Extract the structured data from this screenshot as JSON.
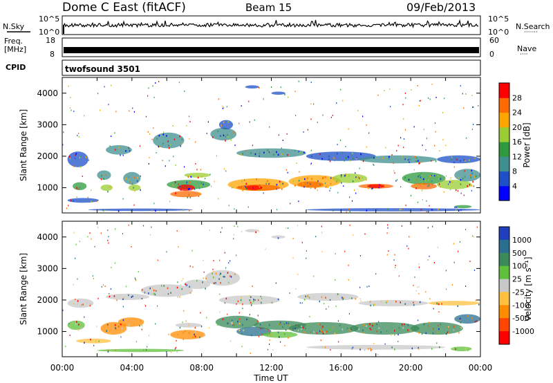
{
  "header": {
    "title": "Dome C East (fitACF)",
    "beam": "Beam 15",
    "date": "09/Feb/2013"
  },
  "nsky_panel": {
    "left_label": "N.Sky",
    "right_label": "N.Search",
    "right_marker": "·······",
    "tick_top": "10^5",
    "tick_bottom": "10^0"
  },
  "freq_panel": {
    "left_label_line1": "Freq.",
    "left_label_line2": "[MHz]",
    "left_tick_top": "18",
    "left_tick_bottom": "8",
    "right_label": "Nave",
    "right_marker": "····",
    "right_tick_top": "60",
    "right_tick_bottom": "0"
  },
  "cpid_panel": {
    "label": "CPID",
    "text": "twofsound 3501"
  },
  "chart_data": [
    {
      "type": "heatmap",
      "name": "power",
      "ylabel": "Slant Range [km]",
      "ylim": [
        200,
        4500
      ],
      "yticks": [
        "1000",
        "2000",
        "3000",
        "4000"
      ],
      "xlim": [
        0,
        24
      ],
      "colorbar": {
        "label": "Power [dB]",
        "ticks": [
          "4",
          "8",
          "12",
          "16",
          "20",
          "24",
          "28"
        ],
        "colors": [
          "#0000ff",
          "#1e4fc8",
          "#3f8f8f",
          "#2e9a3e",
          "#9acd32",
          "#ffa500",
          "#ff6a00",
          "#ff0000"
        ]
      }
    },
    {
      "type": "heatmap",
      "name": "velocity",
      "ylabel": "Slant Range [km]",
      "ylim": [
        200,
        4500
      ],
      "yticks": [
        "1000",
        "2000",
        "3000",
        "4000"
      ],
      "xlim": [
        0,
        24
      ],
      "xticks": [
        "00:00",
        "04:00",
        "08:00",
        "12:00",
        "16:00",
        "20:00",
        "00:00"
      ],
      "xlabel": "Time UT",
      "colorbar": {
        "label": "Velocity [m s⁻¹]",
        "ticks": [
          "1000",
          "500",
          "100",
          "25",
          "-25",
          "-100",
          "-500",
          "-1000"
        ],
        "colors": [
          "#1f3fbf",
          "#2a6f8f",
          "#3a8a5a",
          "#5fc03a",
          "#c8c8c8",
          "#ffc040",
          "#ff8c00",
          "#ff4500",
          "#ff0000"
        ]
      }
    }
  ],
  "power_blobs": [
    {
      "t": 0.3,
      "r": 1900,
      "dt": 1.2,
      "dr": 500,
      "c": "#1e4fc8"
    },
    {
      "t": 0.6,
      "r": 1050,
      "dt": 0.8,
      "dr": 250,
      "c": "#2e9a3e"
    },
    {
      "t": 0.3,
      "r": 600,
      "dt": 1.8,
      "dr": 150,
      "c": "#1e4fc8"
    },
    {
      "t": 2.0,
      "r": 1400,
      "dt": 0.8,
      "dr": 300,
      "c": "#3f8f8f"
    },
    {
      "t": 2.2,
      "r": 1000,
      "dt": 0.7,
      "dr": 200,
      "c": "#9acd32"
    },
    {
      "t": 3.5,
      "r": 1300,
      "dt": 1.0,
      "dr": 400,
      "c": "#3f8f8f"
    },
    {
      "t": 3.8,
      "r": 1000,
      "dt": 0.7,
      "dr": 200,
      "c": "#9acd32"
    },
    {
      "t": 2.5,
      "r": 2200,
      "dt": 1.5,
      "dr": 300,
      "c": "#3f8f8f"
    },
    {
      "t": 5.2,
      "r": 2500,
      "dt": 1.8,
      "dr": 500,
      "c": "#3f8f8f"
    },
    {
      "t": 6.0,
      "r": 1100,
      "dt": 2.5,
      "dr": 300,
      "c": "#2e9a3e"
    },
    {
      "t": 6.2,
      "r": 800,
      "dt": 1.8,
      "dr": 200,
      "c": "#ff6a00"
    },
    {
      "t": 6.6,
      "r": 1000,
      "dt": 1.0,
      "dr": 200,
      "c": "#ff0000"
    },
    {
      "t": 7.0,
      "r": 1400,
      "dt": 1.5,
      "dr": 150,
      "c": "#9acd32"
    },
    {
      "t": 8.5,
      "r": 2700,
      "dt": 1.5,
      "dr": 400,
      "c": "#3f8f8f"
    },
    {
      "t": 9.0,
      "r": 3000,
      "dt": 0.8,
      "dr": 300,
      "c": "#1e4fc8"
    },
    {
      "t": 9.5,
      "r": 1100,
      "dt": 3.5,
      "dr": 400,
      "c": "#ffa500"
    },
    {
      "t": 10.0,
      "r": 1000,
      "dt": 2.5,
      "dr": 200,
      "c": "#ff6a00"
    },
    {
      "t": 10.5,
      "r": 1000,
      "dt": 1.0,
      "dr": 150,
      "c": "#ff0000"
    },
    {
      "t": 10.0,
      "r": 2100,
      "dt": 4.0,
      "dr": 300,
      "c": "#3f8f8f"
    },
    {
      "t": 10.5,
      "r": 4200,
      "dt": 0.8,
      "dr": 100,
      "c": "#1e4fc8"
    },
    {
      "t": 12.0,
      "r": 4000,
      "dt": 0.8,
      "dr": 100,
      "c": "#1e4fc8"
    },
    {
      "t": 13.0,
      "r": 1200,
      "dt": 3.0,
      "dr": 400,
      "c": "#ffa500"
    },
    {
      "t": 13.5,
      "r": 1100,
      "dt": 1.5,
      "dr": 200,
      "c": "#ff6a00"
    },
    {
      "t": 14.0,
      "r": 2000,
      "dt": 4.0,
      "dr": 300,
      "c": "#1e4fc8"
    },
    {
      "t": 15.5,
      "r": 1300,
      "dt": 2.0,
      "dr": 300,
      "c": "#9acd32"
    },
    {
      "t": 17.0,
      "r": 1050,
      "dt": 2.0,
      "dr": 150,
      "c": "#ff6a00"
    },
    {
      "t": 17.5,
      "r": 1050,
      "dt": 1.0,
      "dr": 120,
      "c": "#ff0000"
    },
    {
      "t": 17.0,
      "r": 1900,
      "dt": 4.5,
      "dr": 250,
      "c": "#3f8f8f"
    },
    {
      "t": 19.5,
      "r": 1300,
      "dt": 2.5,
      "dr": 400,
      "c": "#2e9a3e"
    },
    {
      "t": 20.0,
      "r": 1050,
      "dt": 1.5,
      "dr": 200,
      "c": "#ff6a00"
    },
    {
      "t": 21.5,
      "r": 1100,
      "dt": 2.0,
      "dr": 300,
      "c": "#9acd32"
    },
    {
      "t": 22.5,
      "r": 1400,
      "dt": 1.5,
      "dr": 400,
      "c": "#3f8f8f"
    },
    {
      "t": 21.5,
      "r": 1900,
      "dt": 2.5,
      "dr": 250,
      "c": "#1e4fc8"
    },
    {
      "t": 22.5,
      "r": 400,
      "dt": 1.0,
      "dr": 100,
      "c": "#2e9a3e"
    },
    {
      "t": 14.0,
      "r": 300,
      "dt": 10.0,
      "dr": 100,
      "c": "#1e4fc8"
    },
    {
      "t": 1.5,
      "r": 300,
      "dt": 6.0,
      "dr": 80,
      "c": "#1e4fc8"
    }
  ],
  "velocity_blobs": [
    {
      "t": 0.3,
      "r": 1900,
      "dt": 1.5,
      "dr": 300,
      "c": "#c8c8c8"
    },
    {
      "t": 0.3,
      "r": 1200,
      "dt": 1.0,
      "dr": 300,
      "c": "#5fc03a"
    },
    {
      "t": 0.8,
      "r": 700,
      "dt": 2.0,
      "dr": 150,
      "c": "#ffc040"
    },
    {
      "t": 2.2,
      "r": 1100,
      "dt": 1.5,
      "dr": 400,
      "c": "#ff8c00"
    },
    {
      "t": 3.2,
      "r": 1300,
      "dt": 1.5,
      "dr": 300,
      "c": "#ff8c00"
    },
    {
      "t": 2.5,
      "r": 2100,
      "dt": 2.5,
      "dr": 200,
      "c": "#c8c8c8"
    },
    {
      "t": 4.5,
      "r": 2300,
      "dt": 3.0,
      "dr": 400,
      "c": "#c8c8c8"
    },
    {
      "t": 6.2,
      "r": 900,
      "dt": 2.0,
      "dr": 300,
      "c": "#ff8c00"
    },
    {
      "t": 6.5,
      "r": 1200,
      "dt": 1.5,
      "dr": 150,
      "c": "#c8c8c8"
    },
    {
      "t": 7.0,
      "r": 2500,
      "dt": 1.5,
      "dr": 300,
      "c": "#c8c8c8"
    },
    {
      "t": 8.2,
      "r": 2700,
      "dt": 2.0,
      "dr": 500,
      "c": "#c8c8c8"
    },
    {
      "t": 8.8,
      "r": 1300,
      "dt": 2.5,
      "dr": 400,
      "c": "#3a8a5a"
    },
    {
      "t": 9.0,
      "r": 2000,
      "dt": 3.5,
      "dr": 300,
      "c": "#c8c8c8"
    },
    {
      "t": 10.0,
      "r": 1000,
      "dt": 2.0,
      "dr": 300,
      "c": "#2a6f8f"
    },
    {
      "t": 11.0,
      "r": 1200,
      "dt": 3.0,
      "dr": 300,
      "c": "#3a8a5a"
    },
    {
      "t": 11.5,
      "r": 900,
      "dt": 2.0,
      "dr": 200,
      "c": "#5fc03a"
    },
    {
      "t": 13.0,
      "r": 1100,
      "dt": 4.0,
      "dr": 400,
      "c": "#3a8a5a"
    },
    {
      "t": 13.5,
      "r": 2100,
      "dt": 3.5,
      "dr": 250,
      "c": "#c8c8c8"
    },
    {
      "t": 16.5,
      "r": 1100,
      "dt": 4.0,
      "dr": 400,
      "c": "#3a8a5a"
    },
    {
      "t": 17.0,
      "r": 1900,
      "dt": 4.0,
      "dr": 200,
      "c": "#c8c8c8"
    },
    {
      "t": 20.0,
      "r": 1100,
      "dt": 3.0,
      "dr": 400,
      "c": "#3a8a5a"
    },
    {
      "t": 21.0,
      "r": 1900,
      "dt": 3.0,
      "dr": 150,
      "c": "#ffc040"
    },
    {
      "t": 22.5,
      "r": 1400,
      "dt": 1.5,
      "dr": 300,
      "c": "#2a6f8f"
    },
    {
      "t": 22.3,
      "r": 450,
      "dt": 1.2,
      "dr": 150,
      "c": "#5fc03a"
    },
    {
      "t": 10.5,
      "r": 4200,
      "dt": 0.8,
      "dr": 100,
      "c": "#c8c8c8"
    },
    {
      "t": 12.0,
      "r": 4000,
      "dt": 0.8,
      "dr": 100,
      "c": "#c8c8c8"
    },
    {
      "t": 14.0,
      "r": 500,
      "dt": 8.0,
      "dr": 150,
      "c": "#c8c8c8"
    },
    {
      "t": 2.0,
      "r": 400,
      "dt": 5.0,
      "dr": 100,
      "c": "#5fc03a"
    }
  ]
}
